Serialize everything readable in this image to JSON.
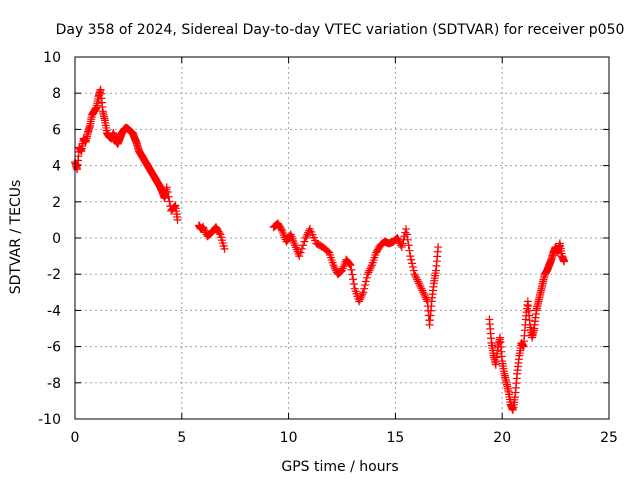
{
  "chart_data": {
    "type": "scatter",
    "title": "Day 358 of 2024, Sidereal Day-to-day VTEC variation (SDTVAR) for receiver p050",
    "xlabel": "GPS time / hours",
    "ylabel": "SDTVAR / TECUs",
    "xlim": [
      0,
      25
    ],
    "ylim": [
      -10,
      10
    ],
    "xticks": [
      0,
      5,
      10,
      15,
      20,
      25
    ],
    "yticks": [
      -10,
      -8,
      -6,
      -4,
      -2,
      0,
      2,
      4,
      6,
      8,
      10
    ],
    "xtick_labels": [
      "0",
      "5",
      "10",
      "15",
      "20",
      "25"
    ],
    "ytick_labels": [
      "-10",
      "-8",
      "-6",
      "-4",
      "-2",
      "0",
      "2",
      "4",
      "6",
      "8",
      "10"
    ],
    "grid": true,
    "marker": "+",
    "color": "#ff0000",
    "series": [
      {
        "name": "SDTVAR",
        "x": [
          0.0,
          0.1,
          0.2,
          0.3,
          0.4,
          0.5,
          0.6,
          0.7,
          0.8,
          0.9,
          1.0,
          1.1,
          1.2,
          1.3,
          1.4,
          1.5,
          1.6,
          1.7,
          1.8,
          1.9,
          2.0,
          2.1,
          2.2,
          2.3,
          2.4,
          2.5,
          2.6,
          2.7,
          2.8,
          2.9,
          3.0,
          3.1,
          3.2,
          3.3,
          3.4,
          3.5,
          3.6,
          3.7,
          3.8,
          3.9,
          4.0,
          4.1,
          4.2,
          4.3,
          4.5,
          4.7,
          4.8,
          5.8,
          5.9,
          6.0,
          6.2,
          6.4,
          6.6,
          6.8,
          7.0,
          9.3,
          9.5,
          9.7,
          9.9,
          10.1,
          10.3,
          10.5,
          10.8,
          11.0,
          11.3,
          11.6,
          11.9,
          12.1,
          12.3,
          12.5,
          12.7,
          12.9,
          13.1,
          13.3,
          13.5,
          13.7,
          13.9,
          14.1,
          14.3,
          14.5,
          14.7,
          14.9,
          15.1,
          15.3,
          15.5,
          15.7,
          15.9,
          16.1,
          16.3,
          16.5,
          16.6,
          16.7,
          16.8,
          16.9,
          17.0,
          19.4,
          19.5,
          19.6,
          19.7,
          19.8,
          19.9,
          20.0,
          20.1,
          20.2,
          20.3,
          20.4,
          20.5,
          20.6,
          20.7,
          20.8,
          20.9,
          21.0,
          21.1,
          21.2,
          21.3,
          21.4,
          21.5,
          21.6,
          21.7,
          21.8,
          21.9,
          22.0,
          22.1,
          22.2,
          22.3,
          22.4,
          22.5,
          22.6,
          22.7,
          22.8,
          22.9
        ],
        "y": [
          4.2,
          3.8,
          5.0,
          4.8,
          5.5,
          5.3,
          5.8,
          6.2,
          6.8,
          7.0,
          7.2,
          7.8,
          8.2,
          7.0,
          6.5,
          5.8,
          5.6,
          5.5,
          5.8,
          5.4,
          5.2,
          5.5,
          5.8,
          6.0,
          6.1,
          6.0,
          5.9,
          5.8,
          5.5,
          5.2,
          4.8,
          4.6,
          4.4,
          4.2,
          4.0,
          3.8,
          3.6,
          3.4,
          3.2,
          3.0,
          2.8,
          2.5,
          2.2,
          2.8,
          1.5,
          1.8,
          1.0,
          0.7,
          0.5,
          0.6,
          0.1,
          0.3,
          0.6,
          0.2,
          -0.6,
          0.6,
          0.8,
          0.4,
          -0.2,
          0.2,
          -0.4,
          -1.0,
          0.0,
          0.5,
          -0.3,
          -0.5,
          -0.8,
          -1.5,
          -2.0,
          -1.8,
          -1.2,
          -1.5,
          -2.8,
          -3.5,
          -3.0,
          -2.0,
          -1.5,
          -0.8,
          -0.4,
          -0.2,
          -0.3,
          -0.2,
          0.0,
          -0.5,
          0.5,
          -1.0,
          -2.0,
          -2.5,
          -3.0,
          -3.5,
          -4.8,
          -3.5,
          -2.5,
          -1.8,
          -0.5,
          -4.5,
          -5.8,
          -6.5,
          -7.0,
          -6.0,
          -5.5,
          -6.8,
          -7.5,
          -8.0,
          -8.5,
          -9.2,
          -9.5,
          -8.8,
          -7.5,
          -6.5,
          -5.8,
          -6.0,
          -4.5,
          -3.5,
          -4.8,
          -5.5,
          -5.0,
          -4.0,
          -3.5,
          -3.0,
          -2.5,
          -2.0,
          -1.8,
          -1.5,
          -1.2,
          -0.8,
          -0.5,
          -0.8,
          -0.3,
          -1.0,
          -1.3
        ]
      }
    ]
  }
}
